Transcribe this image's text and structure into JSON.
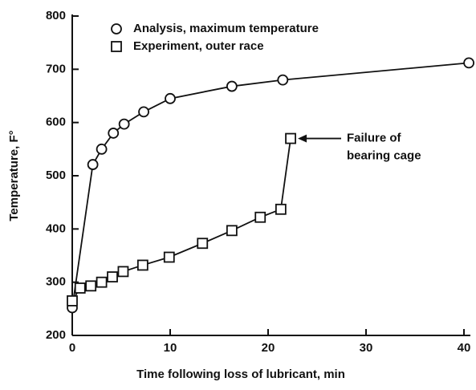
{
  "chart_data": {
    "type": "line",
    "x_label": "Time following loss of lubricant, min",
    "y_label": "Temperature, F°",
    "xlim": [
      0,
      40
    ],
    "xticks": [
      0,
      10,
      20,
      30,
      40
    ],
    "ylim": [
      200,
      800
    ],
    "yticks": [
      200,
      300,
      400,
      500,
      600,
      700,
      800
    ],
    "legend": "upper left",
    "series": [
      {
        "name": "Analysis, maximum temperature",
        "color": "#111111",
        "marker": "circle",
        "x": [
          0,
          2.1,
          3,
          4.2,
          5.3,
          7.3,
          10,
          16.3,
          21.5,
          40.5
        ],
        "values": [
          252,
          521,
          550,
          580,
          597,
          620,
          645,
          668,
          680,
          712
        ]
      },
      {
        "name": "Experiment, outer race",
        "color": "#111111",
        "marker": "square",
        "x": [
          0,
          0.8,
          1.9,
          3,
          4.1,
          5.2,
          7.2,
          9.9,
          13.3,
          16.3,
          19.2,
          21.3,
          22.3
        ],
        "values": [
          265,
          289,
          293,
          300,
          310,
          320,
          332,
          347,
          373,
          397,
          422,
          437,
          570
        ]
      }
    ],
    "annotations": [
      {
        "text": [
          "Failure of",
          "bearing cage"
        ]
      }
    ]
  }
}
